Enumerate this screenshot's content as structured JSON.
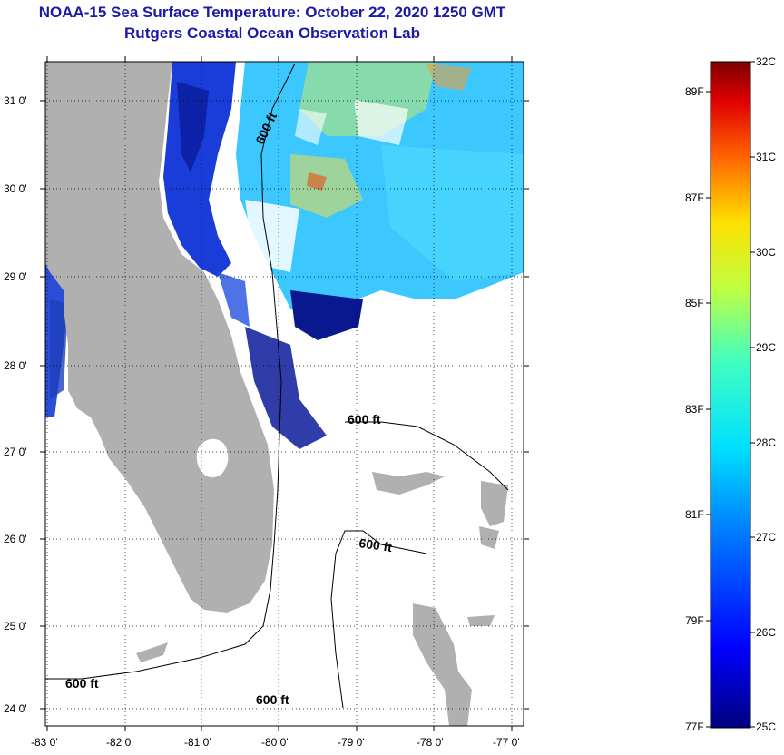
{
  "title": {
    "line1": "NOAA-15 Sea Surface Temperature:  October 22, 2020 1250 GMT",
    "line2": "Rutgers Coastal Ocean Observation Lab"
  },
  "map": {
    "lat_labels": [
      "31 0'",
      "30 0'",
      "29 0'",
      "28 0'",
      "27 0'",
      "26 0'",
      "25 0'",
      "24 0'"
    ],
    "lon_labels": [
      "-83 0'",
      "-82 0'",
      "-81 0'",
      "-80 0'",
      "-79 0'",
      "-78 0'",
      "-77 0'"
    ],
    "contour_labels": [
      "600 ft",
      "600 ft",
      "600 ft",
      "600 ft",
      "600 ft"
    ],
    "colors": {
      "land": "#b0b0b0",
      "ocean_nodata": "#ffffff"
    }
  },
  "colorbar": {
    "celsius": [
      "32C",
      "31C",
      "30C",
      "29C",
      "28C",
      "27C",
      "26C",
      "25C"
    ],
    "fahrenheit": [
      "89F",
      "87F",
      "85F",
      "83F",
      "81F",
      "79F",
      "77F"
    ],
    "range_c": [
      25,
      32
    ]
  }
}
